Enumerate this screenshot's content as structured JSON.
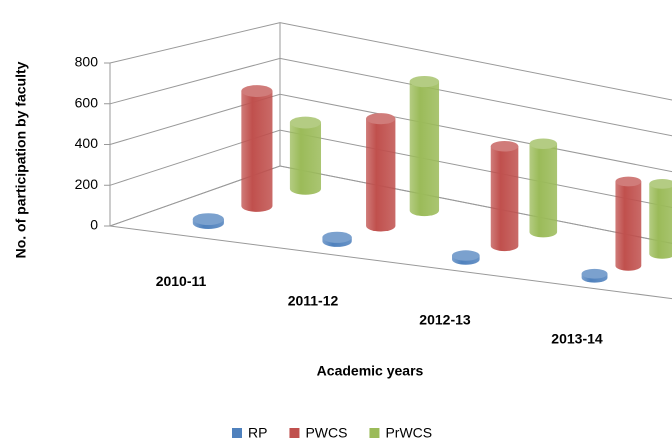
{
  "chart_data": {
    "type": "bar3d",
    "y_label": "No. of participation by faculty",
    "x_label": "Academic years",
    "categories": [
      "2010-11",
      "2011-12",
      "2012-13",
      "2013-14"
    ],
    "series": [
      {
        "name": "RP",
        "color": "#4f81bd",
        "values": [
          20,
          20,
          20,
          20
        ]
      },
      {
        "name": "PWCS",
        "color": "#c0504d",
        "values": [
          600,
          560,
          520,
          440
        ]
      },
      {
        "name": "PrWCS",
        "color": "#9bbb59",
        "values": [
          360,
          700,
          480,
          380
        ]
      }
    ],
    "ylim": [
      0,
      800
    ],
    "yticks": [
      0,
      200,
      400,
      600,
      800
    ],
    "grid": true,
    "legend": "bottom"
  }
}
